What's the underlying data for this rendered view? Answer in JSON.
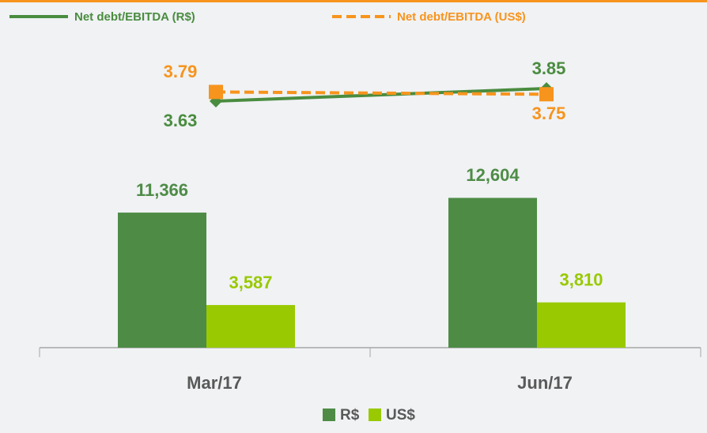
{
  "chart_data": {
    "type": "bar",
    "categories": [
      "Mar/17",
      "Jun/17"
    ],
    "ylim": [
      0,
      25000
    ],
    "y2lim": [
      -0.66,
      4.51
    ],
    "series": [
      {
        "name": "R$",
        "color": "#4e8c46",
        "values": [
          11366,
          12604
        ],
        "value_labels": [
          "11,366",
          "12,604"
        ]
      },
      {
        "name": "US$",
        "color": "#99c900",
        "values": [
          3587,
          3810
        ],
        "value_labels": [
          "3,587",
          "3,810"
        ]
      },
      {
        "name": "Net debt/EBITDA (R$)",
        "type": "line",
        "axis": "y2",
        "color": "#4a8c3f",
        "marker": "diamond",
        "values": [
          3.63,
          3.85
        ]
      },
      {
        "name": "Net debt/EBITDA (US$)",
        "type": "line",
        "axis": "y2",
        "color": "#f7941d",
        "marker": "square",
        "dashed": true,
        "values": [
          3.79,
          3.75
        ]
      }
    ]
  }
}
